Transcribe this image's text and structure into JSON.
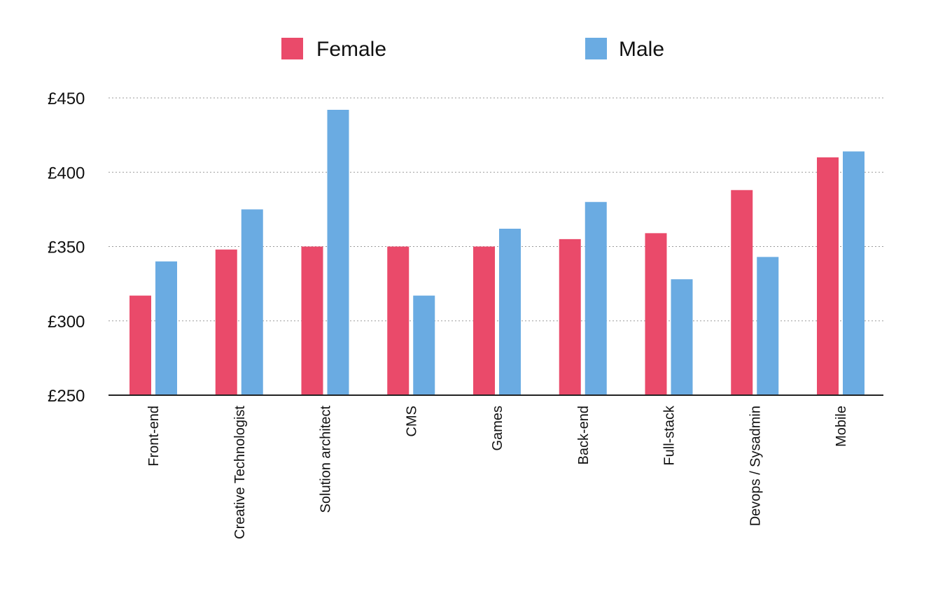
{
  "chart_data": {
    "type": "bar",
    "title": "",
    "xlabel": "",
    "ylabel": "",
    "categories": [
      "Front-end",
      "Creative Technologist",
      "Solution architect",
      "CMS",
      "Games",
      "Back-end",
      "Full-stack",
      "Devops / Sysadmin",
      "Mobile"
    ],
    "series": [
      {
        "name": "Female",
        "color": "#EA4A6A",
        "values": [
          317,
          348,
          350,
          350,
          350,
          355,
          359,
          388,
          410
        ]
      },
      {
        "name": "Male",
        "color": "#6AABE2",
        "values": [
          340,
          375,
          442,
          317,
          362,
          380,
          328,
          343,
          414
        ]
      }
    ],
    "ylim": [
      250,
      450
    ],
    "yticks": [
      250,
      300,
      350,
      400,
      450
    ],
    "ytick_labels": [
      "£250",
      "£300",
      "£350",
      "£400",
      "£450"
    ],
    "grid": true,
    "legend_position": "top"
  }
}
